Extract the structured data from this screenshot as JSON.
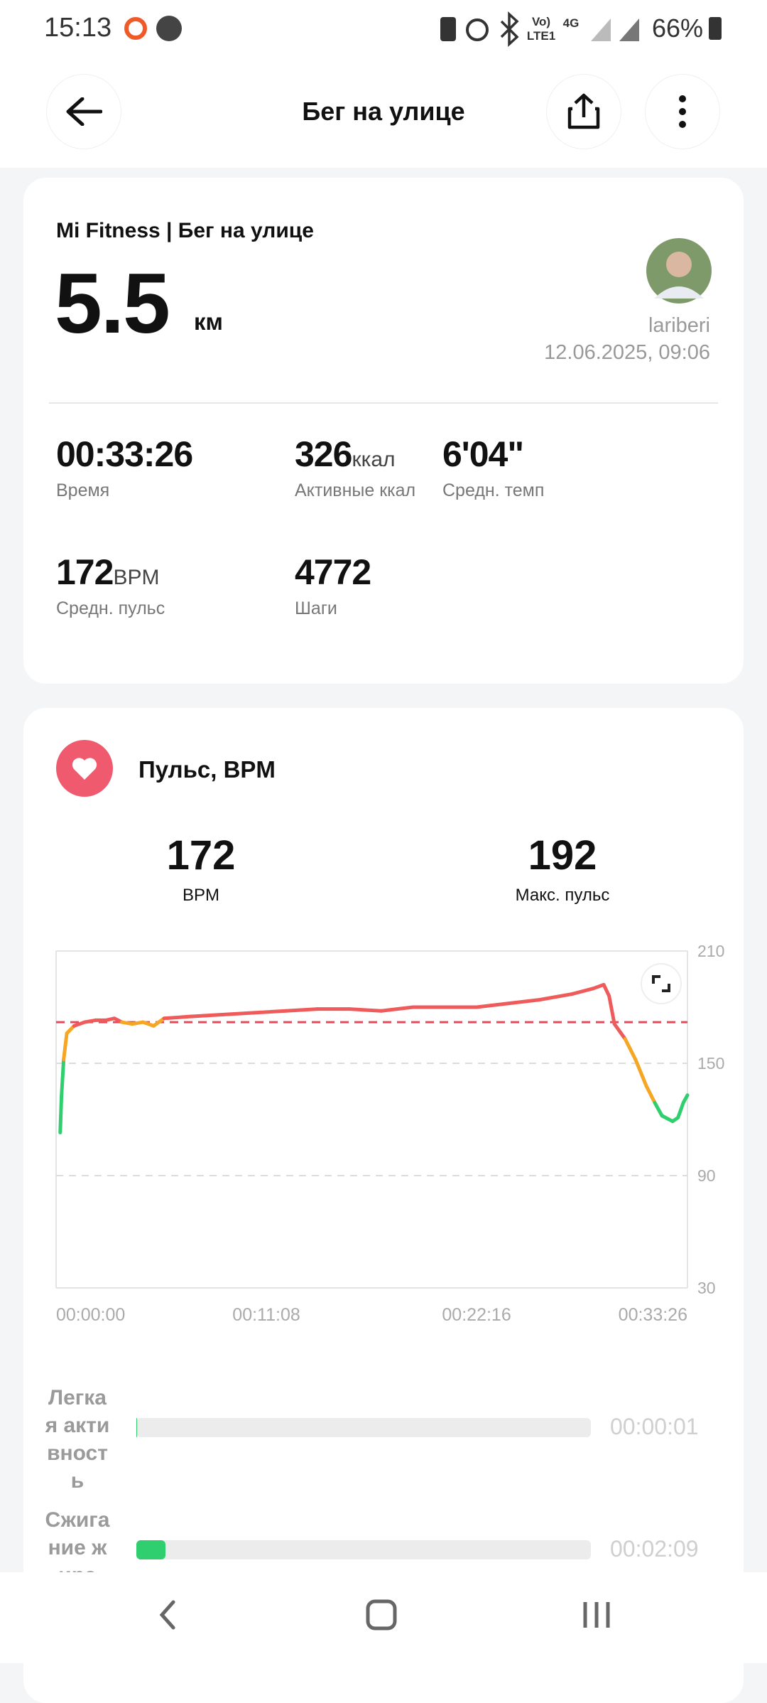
{
  "status": {
    "time": "15:13",
    "volte": "Vo)",
    "lte": "LTE1",
    "net": "4G",
    "battery": "66%"
  },
  "header": {
    "title": "Бег на улице"
  },
  "summary": {
    "source": "Mi Fitness | Бег на улице",
    "distance": "5.5",
    "unit": "км",
    "user": "lariberi",
    "date": "12.06.2025, 09:06",
    "stats": [
      {
        "value": "00:33:26",
        "label": "Время"
      },
      {
        "value": "326",
        "unit": "ккал",
        "label": "Активные ккал"
      },
      {
        "value": "6'04\"",
        "label": "Средн. темп"
      },
      {
        "value": "172",
        "unit": "BPM",
        "label": "Средн. пульс"
      },
      {
        "value": "4772",
        "label": "Шаги"
      }
    ]
  },
  "heart": {
    "title": "Пульс, BPM",
    "avg": {
      "value": 172,
      "label": "BPM"
    },
    "max": {
      "value": 192,
      "label": "Макс. пульс"
    },
    "zones": [
      {
        "name": "Легкая активность",
        "time": "00:00:01",
        "color": "#2fcf6f"
      },
      {
        "name": "Сжигание жира",
        "time": "00:02:09",
        "color": "#2fcf6f"
      }
    ]
  },
  "chart_data": {
    "type": "line",
    "x": [
      13,
      17,
      24,
      34,
      57,
      91,
      125,
      158,
      185,
      209,
      242,
      276,
      310,
      343,
      427,
      528,
      629,
      730,
      831,
      932,
      1033,
      1134,
      1235,
      1336,
      1437,
      1538,
      1639,
      1707,
      1740,
      1757,
      1774,
      1808,
      1841,
      1875,
      1902,
      1925,
      1959,
      1976,
      1993,
      2006
    ],
    "values": [
      113,
      132,
      152,
      166,
      170,
      172,
      173,
      173,
      174,
      172,
      171,
      172,
      170,
      174,
      175,
      176,
      177,
      178,
      179,
      179,
      178,
      180,
      180,
      180,
      182,
      184,
      187,
      190,
      192,
      186,
      171,
      163,
      152,
      138,
      129,
      122,
      119,
      121,
      129,
      133
    ],
    "colors": [
      "#2fcf6f",
      "#2fcf6f",
      "#f5a623",
      "#f5a623",
      "#ef5b5b",
      "#ef5b5b",
      "#ef5b5b",
      "#ef5b5b",
      "#ef5b5b",
      "#f5a623",
      "#f5a623",
      "#f5a623",
      "#f5a623",
      "#ef5b5b",
      "#ef5b5b",
      "#ef5b5b",
      "#ef5b5b",
      "#ef5b5b",
      "#ef5b5b",
      "#ef5b5b",
      "#ef5b5b",
      "#ef5b5b",
      "#ef5b5b",
      "#ef5b5b",
      "#ef5b5b",
      "#ef5b5b",
      "#ef5b5b",
      "#ef5b5b",
      "#ef5b5b",
      "#ef5b5b",
      "#ef5b5b",
      "#f5a623",
      "#f5a623",
      "#f5a623",
      "#2fcf6f",
      "#2fcf6f",
      "#2fcf6f",
      "#2fcf6f",
      "#2fcf6f",
      "#2fcf6f"
    ],
    "xlim": [
      0,
      2006
    ],
    "xticks": [
      {
        "value": 0,
        "label": "00:00:00"
      },
      {
        "value": 668,
        "label": "00:11:08"
      },
      {
        "value": 1336,
        "label": "00:22:16"
      },
      {
        "value": 2006,
        "label": "00:33:26"
      }
    ],
    "ylim": [
      30,
      210
    ],
    "yticks": [
      30,
      90,
      150,
      210
    ],
    "grid": true,
    "ref_color": "#e8495a"
  }
}
